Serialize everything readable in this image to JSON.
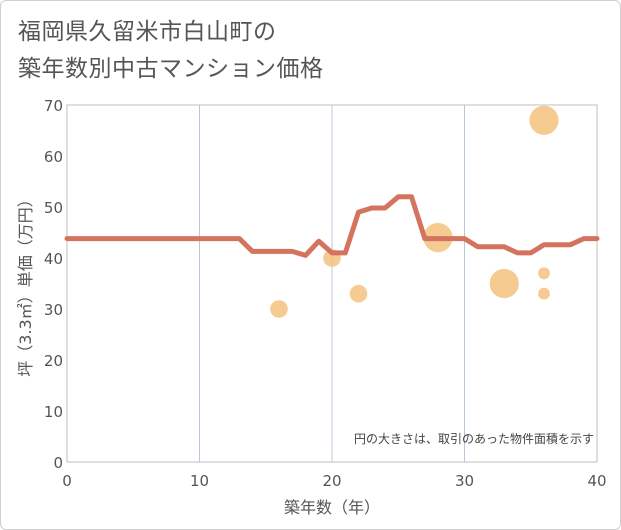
{
  "title_lines": [
    "福岡県久留米市白山町の",
    "築年数別中古マンション価格"
  ],
  "chart_data": {
    "type": "line+scatter",
    "xlabel": "築年数（年）",
    "ylabel": "坪（3.3㎡）単価（万円）",
    "xlim": [
      0,
      40
    ],
    "ylim": [
      0,
      70
    ],
    "x_ticks": [
      0,
      10,
      20,
      30,
      40
    ],
    "y_ticks": [
      0,
      10,
      20,
      30,
      40,
      50,
      60,
      70
    ],
    "grid": true,
    "note": "円の大きさは、取引のあった物件面積を示す",
    "line": {
      "color": "#d4735e",
      "x": [
        0,
        1,
        2,
        3,
        4,
        5,
        6,
        7,
        8,
        9,
        10,
        11,
        12,
        13,
        14,
        15,
        16,
        17,
        18,
        19,
        20,
        21,
        22,
        23,
        24,
        25,
        26,
        27,
        28,
        29,
        30,
        31,
        32,
        33,
        34,
        35,
        36,
        37,
        38,
        39,
        40
      ],
      "y": [
        43.8,
        43.8,
        43.8,
        43.8,
        43.8,
        43.8,
        43.8,
        43.8,
        43.8,
        43.8,
        43.8,
        43.8,
        43.8,
        43.8,
        41.3,
        41.3,
        41.3,
        41.3,
        40.5,
        43.3,
        41.0,
        41.0,
        49.0,
        49.8,
        49.8,
        52.0,
        52.0,
        43.8,
        43.8,
        43.8,
        43.8,
        42.2,
        42.2,
        42.2,
        41.0,
        41.0,
        42.6,
        42.6,
        42.6,
        43.8,
        43.8
      ]
    },
    "points": {
      "color": "#f3c27f",
      "items": [
        {
          "x": 16,
          "y": 30,
          "size": 2
        },
        {
          "x": 20,
          "y": 40,
          "size": 2
        },
        {
          "x": 22,
          "y": 33,
          "size": 2
        },
        {
          "x": 28,
          "y": 44,
          "size": 4
        },
        {
          "x": 33,
          "y": 35,
          "size": 4
        },
        {
          "x": 36,
          "y": 67,
          "size": 4
        },
        {
          "x": 36,
          "y": 37,
          "size": 1
        },
        {
          "x": 36,
          "y": 33,
          "size": 1
        }
      ]
    }
  }
}
